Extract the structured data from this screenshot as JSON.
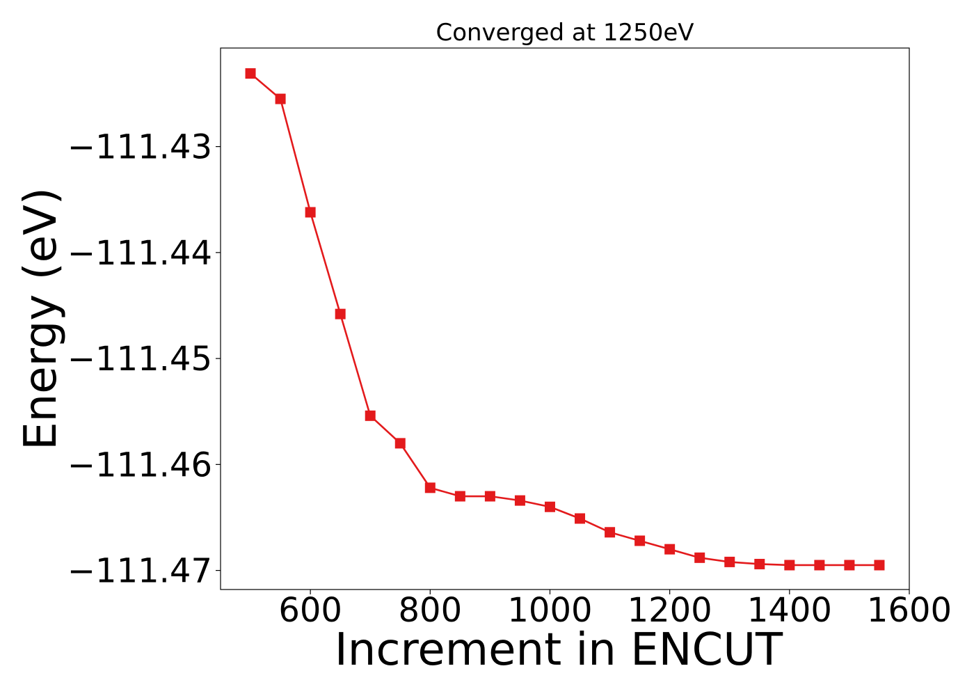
{
  "chart_data": {
    "type": "line",
    "title": "Converged at 1250eV",
    "xlabel": "Increment in ENCUT",
    "ylabel": "Energy (eV)",
    "xlim": [
      450,
      1600
    ],
    "ylim": [
      -111.4718,
      -111.4207
    ],
    "xticks": [
      600,
      800,
      1000,
      1200,
      1400,
      1600
    ],
    "xtick_labels": [
      "600",
      "800",
      "1000",
      "1200",
      "1400",
      "1600"
    ],
    "yticks": [
      -111.43,
      -111.44,
      -111.45,
      -111.46,
      -111.47
    ],
    "ytick_labels": [
      "−111.43",
      "−111.44",
      "−111.45",
      "−111.46",
      "−111.47"
    ],
    "grid": false,
    "series": [
      {
        "color": "#e31a1c",
        "marker": "square",
        "x": [
          500,
          550,
          600,
          650,
          700,
          750,
          800,
          850,
          900,
          950,
          1000,
          1050,
          1100,
          1150,
          1200,
          1250,
          1300,
          1350,
          1400,
          1450,
          1500,
          1550
        ],
        "y": [
          -111.4231,
          -111.4255,
          -111.4362,
          -111.4458,
          -111.4554,
          -111.458,
          -111.4622,
          -111.463,
          -111.463,
          -111.4634,
          -111.464,
          -111.4651,
          -111.4664,
          -111.4672,
          -111.468,
          -111.4688,
          -111.4692,
          -111.4694,
          -111.4695,
          -111.4695,
          -111.4695,
          -111.4695
        ]
      }
    ]
  }
}
